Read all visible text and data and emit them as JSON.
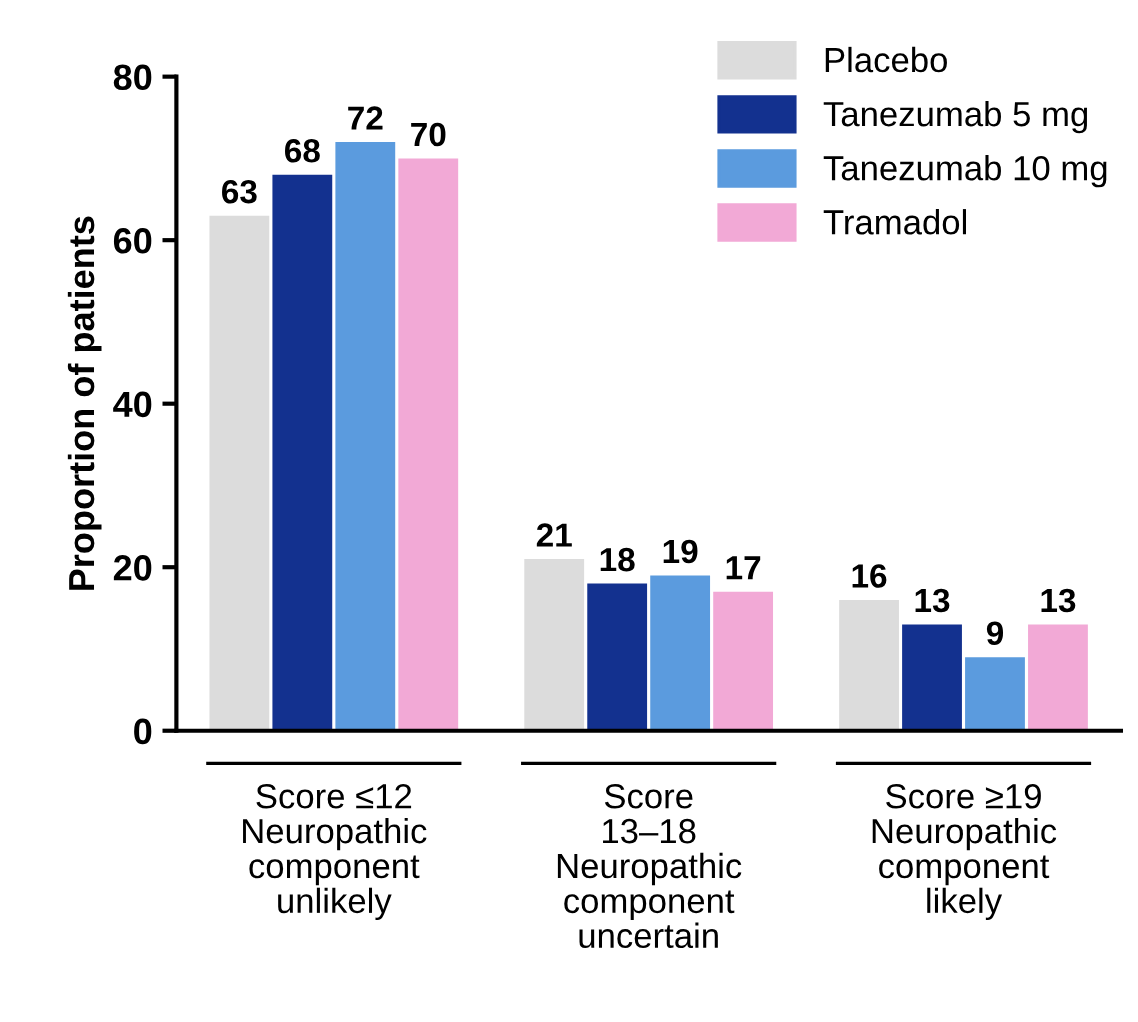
{
  "chart_data": {
    "type": "bar",
    "ylabel": "Proportion of patients",
    "categories": [
      "Score ≤12\nNeuropathic\ncomponent\nunlikely",
      "Score\n13–18\nNeuropathic\ncomponent\nuncertain",
      "Score ≥19\nNeuropathic\ncomponent\nlikely"
    ],
    "series": [
      {
        "name": "Placebo",
        "color": "#dcdcdc",
        "values": [
          63,
          21,
          16
        ]
      },
      {
        "name": "Tanezumab 5 mg",
        "color": "#13318f",
        "values": [
          68,
          18,
          13
        ]
      },
      {
        "name": "Tanezumab 10 mg",
        "color": "#5b9bde",
        "values": [
          72,
          19,
          9
        ]
      },
      {
        "name": "Tramadol",
        "color": "#f2a9d6",
        "values": [
          70,
          17,
          13
        ]
      }
    ],
    "ylim": [
      0,
      80
    ],
    "yticks": [
      0,
      20,
      40,
      60,
      80
    ],
    "grid": false,
    "legend": "top right",
    "data_labels": true
  }
}
